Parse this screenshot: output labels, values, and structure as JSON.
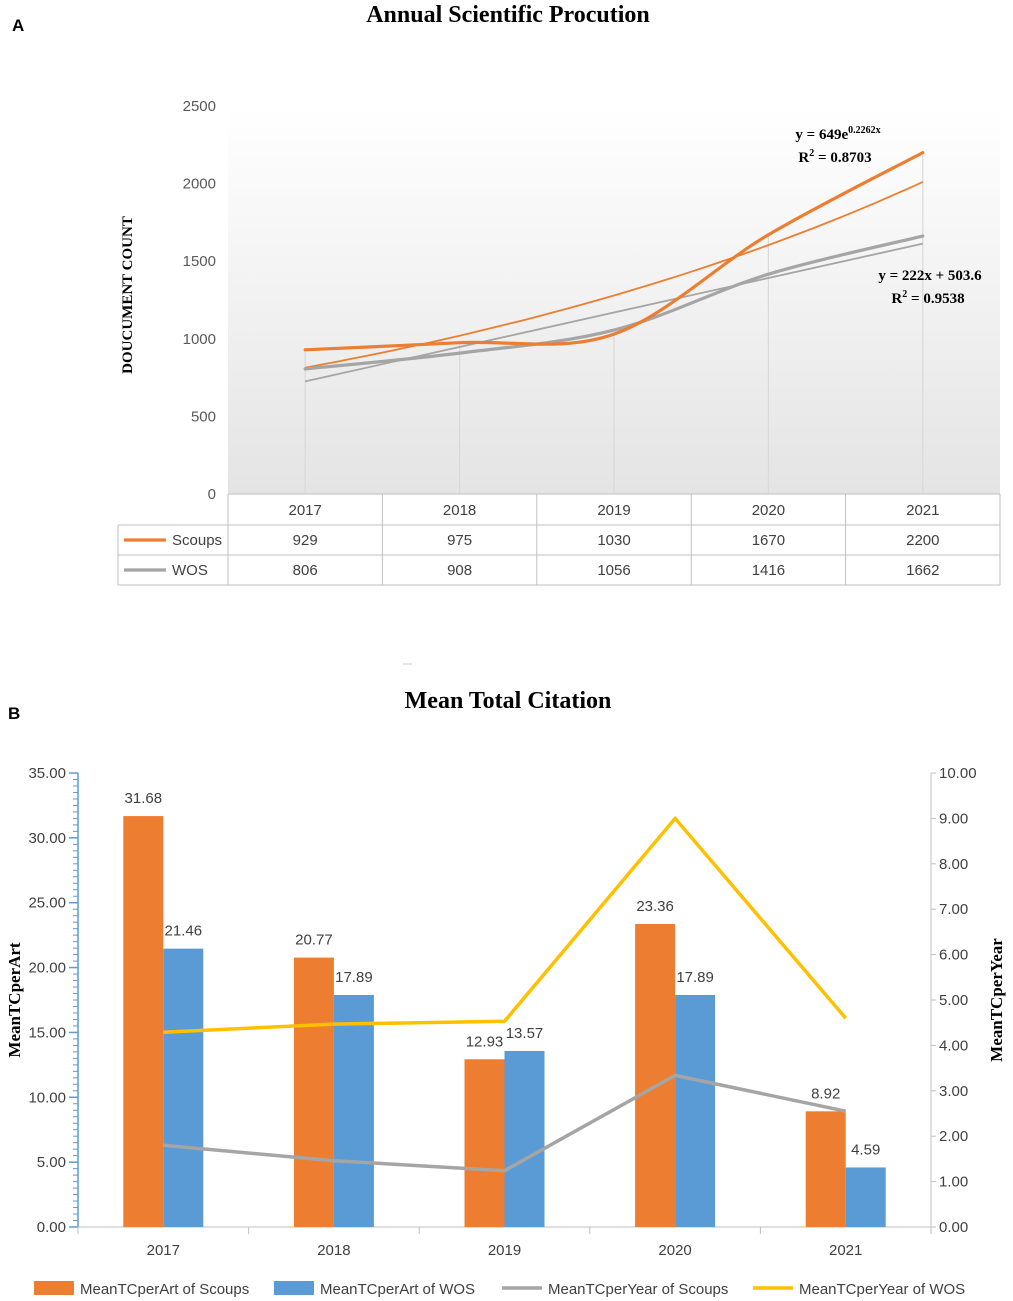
{
  "colors": {
    "scoups": "#ED7D31",
    "wos_a": "#A5A5A5",
    "wos_b": "#5B9BD5",
    "year_wos": "#FFC000",
    "grid": "#D9D9D9",
    "axis_blue": "#5B9BD5"
  },
  "chart_data": [
    {
      "panel_label": "A",
      "type": "line",
      "title": "Annual Scientific Procution",
      "ylabel": "DOUCUMENT COUNT",
      "ylim": [
        0,
        2500
      ],
      "yticks": [
        "0",
        "500",
        "1000",
        "1500",
        "2000",
        "2500"
      ],
      "categories": [
        "2017",
        "2018",
        "2019",
        "2020",
        "2021"
      ],
      "series": [
        {
          "name": "Scoups",
          "values": [
            929,
            975,
            1030,
            1670,
            2200
          ],
          "value_labels": [
            "929",
            "975",
            "1030",
            "1670",
            "2200"
          ]
        },
        {
          "name": "WOS",
          "values": [
            806,
            908,
            1056,
            1416,
            1662
          ],
          "value_labels": [
            "806",
            "908",
            "1056",
            "1416",
            "1662"
          ]
        }
      ],
      "trendlines": [
        {
          "series": "Scoups",
          "kind": "exponential",
          "a": 649,
          "b": 0.2262,
          "equation_base": "y = 649e",
          "equation_exp": "0.2262x",
          "r2_prefix": "R",
          "r2_sup": "2",
          "r2_value": " = 0.8703"
        },
        {
          "series": "WOS",
          "kind": "linear",
          "slope": 222,
          "intercept": 503.6,
          "equation": "y = 222x + 503.6",
          "r2_prefix": "R",
          "r2_sup": "2",
          "r2_value": " = 0.9538"
        }
      ]
    },
    {
      "panel_label": "B",
      "type": "bar",
      "title": "Mean Total Citation",
      "ylabel_left": "MeanTCperArt",
      "ylabel_right": "MeanTCperYear",
      "ylim_left": [
        0,
        35
      ],
      "ylim_right": [
        0,
        10
      ],
      "yticks_left": [
        "0.00",
        "5.00",
        "10.00",
        "15.00",
        "20.00",
        "25.00",
        "30.00",
        "35.00"
      ],
      "yticks_right": [
        "0.00",
        "1.00",
        "2.00",
        "3.00",
        "4.00",
        "5.00",
        "6.00",
        "7.00",
        "8.00",
        "9.00",
        "10.00"
      ],
      "categories": [
        "2017",
        "2018",
        "2019",
        "2020",
        "2021"
      ],
      "bar_series": [
        {
          "name": "MeanTCperArt of Scoups",
          "values": [
            31.68,
            20.77,
            12.93,
            23.36,
            8.92
          ],
          "labels": [
            "31.68",
            "20.77",
            "12.93",
            "23.36",
            "8.92"
          ]
        },
        {
          "name": "MeanTCperArt of WOS",
          "values": [
            21.46,
            17.89,
            13.57,
            17.89,
            4.59
          ],
          "labels": [
            "21.46",
            "17.89",
            "13.57",
            "17.89",
            "4.59"
          ]
        }
      ],
      "line_series": [
        {
          "name": "MeanTCperYear of Scoups",
          "values": [
            1.8,
            1.46,
            1.24,
            3.34,
            2.55
          ]
        },
        {
          "name": "MeanTCperYear of WOS",
          "values": [
            4.29,
            4.47,
            4.53,
            9.0,
            4.6
          ]
        }
      ]
    }
  ]
}
